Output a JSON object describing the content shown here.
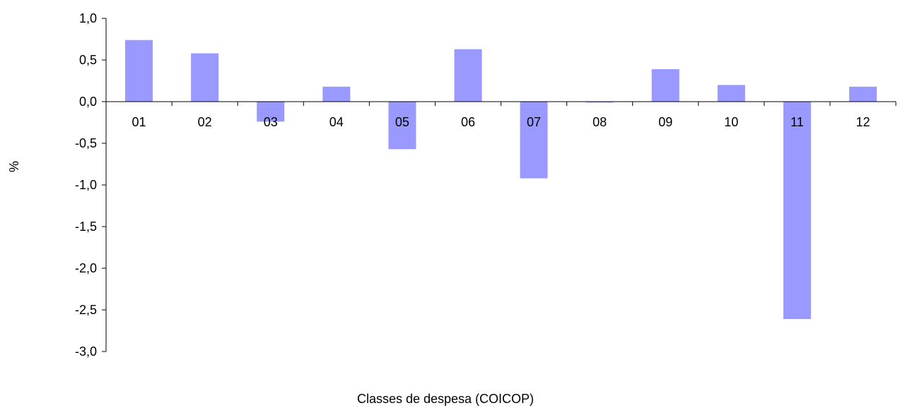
{
  "chart_data": {
    "type": "bar",
    "categories": [
      "01",
      "02",
      "03",
      "04",
      "05",
      "06",
      "07",
      "08",
      "09",
      "10",
      "11",
      "12"
    ],
    "values": [
      0.74,
      0.58,
      -0.24,
      0.18,
      -0.57,
      0.63,
      -0.92,
      -0.01,
      0.39,
      0.2,
      -2.61,
      0.18
    ],
    "xlabel": "Classes de despesa (COICOP)",
    "ylabel": "%",
    "ylim": [
      -3.0,
      1.0
    ],
    "yticks": [
      "1,0",
      "0,5",
      "0,0",
      "-0,5",
      "-1,0",
      "-1,5",
      "-2,0",
      "-2,5",
      "-3,0"
    ],
    "ytick_values": [
      1.0,
      0.5,
      0.0,
      -0.5,
      -1.0,
      -1.5,
      -2.0,
      -2.5,
      -3.0
    ],
    "bar_color": "#9999ff",
    "grid": false,
    "legend": "none"
  }
}
